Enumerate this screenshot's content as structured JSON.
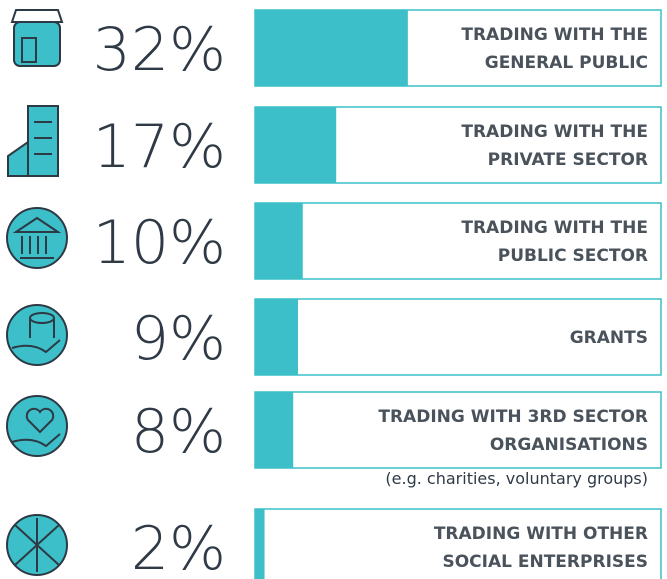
{
  "chart_data": {
    "type": "bar",
    "categories": [
      [
        "TRADING WITH THE",
        "GENERAL PUBLIC"
      ],
      [
        "TRADING WITH THE",
        "PRIVATE SECTOR"
      ],
      [
        "TRADING WITH THE",
        "PUBLIC SECTOR"
      ],
      [
        "GRANTS"
      ],
      [
        "TRADING WITH 3RD SECTOR",
        "ORGANISATIONS"
      ],
      [
        "TRADING WITH OTHER",
        "SOCIAL ENTERPRISES"
      ]
    ],
    "values": [
      32,
      17,
      10,
      9,
      8,
      2
    ],
    "value_labels": [
      "32%",
      "17%",
      "10%",
      "9%",
      "8%",
      "2%"
    ],
    "notes": [
      null,
      null,
      null,
      null,
      "(e.g. charities, voluntary groups)",
      null
    ],
    "color": "#3cbfc8",
    "xlim": [
      0,
      85
    ]
  }
}
